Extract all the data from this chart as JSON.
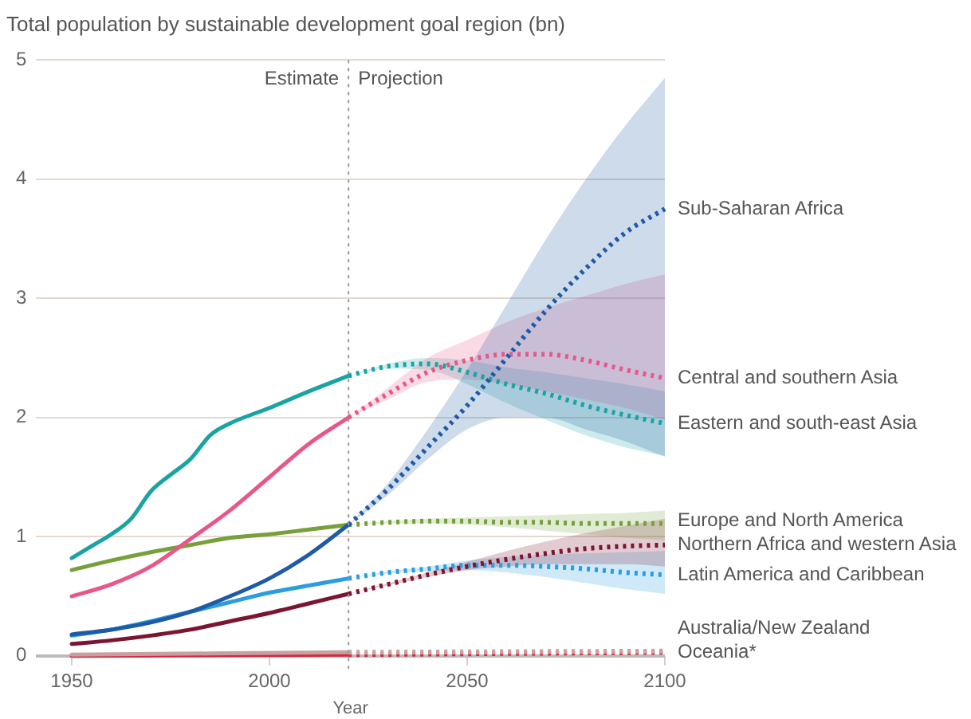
{
  "chart_data": {
    "type": "line",
    "title": "Total population by sustainable development goal region (bn)",
    "xlabel": "Year",
    "xlim": [
      1941,
      2100
    ],
    "xticks": [
      1950,
      2000,
      2050,
      2100
    ],
    "ylim": [
      0,
      5
    ],
    "yticks": [
      0,
      1,
      2,
      3,
      4,
      5
    ],
    "grid": "y",
    "legend": false,
    "annotations": [
      "Estimate",
      "Projection"
    ],
    "ref_lines": [
      {
        "axis": "x",
        "value": 2020,
        "color": "#999999",
        "line_style": "dotted"
      }
    ],
    "series": [
      {
        "color": "#1f5aa6",
        "line_style": "solid",
        "x": [
          1950,
          1960,
          1970,
          1980,
          1990,
          2000,
          2010,
          2020
        ],
        "values": [
          0.18,
          0.22,
          0.28,
          0.37,
          0.5,
          0.65,
          0.85,
          1.1
        ]
      },
      {
        "name": "Sub-Saharan Africa",
        "color": "#1f5aa6",
        "line_style": "dotted",
        "x": [
          2020,
          2030,
          2040,
          2050,
          2060,
          2070,
          2080,
          2090,
          2100
        ],
        "values": [
          1.1,
          1.4,
          1.75,
          2.1,
          2.5,
          2.9,
          3.25,
          3.55,
          3.75
        ],
        "lower": [
          1.1,
          1.35,
          1.65,
          1.9,
          2.0,
          2.0,
          1.9,
          1.8,
          1.67
        ],
        "upper": [
          1.1,
          1.45,
          1.9,
          2.4,
          2.95,
          3.5,
          4.0,
          4.45,
          4.85
        ]
      },
      {
        "color": "#e8578a",
        "line_style": "solid",
        "x": [
          1950,
          1960,
          1970,
          1980,
          1990,
          2000,
          2010,
          2020
        ],
        "values": [
          0.5,
          0.6,
          0.75,
          0.98,
          1.22,
          1.5,
          1.78,
          2.0
        ]
      },
      {
        "name": "Central and southern Asia",
        "color": "#e8578a",
        "line_style": "dotted",
        "x": [
          2020,
          2030,
          2040,
          2050,
          2060,
          2070,
          2080,
          2090,
          2100
        ],
        "values": [
          2.0,
          2.2,
          2.38,
          2.48,
          2.53,
          2.53,
          2.48,
          2.4,
          2.33
        ],
        "lower": [
          2.0,
          2.15,
          2.3,
          2.32,
          2.28,
          2.22,
          2.15,
          2.08,
          1.98
        ],
        "upper": [
          2.0,
          2.25,
          2.5,
          2.65,
          2.8,
          2.92,
          3.02,
          3.12,
          3.2
        ]
      },
      {
        "color": "#1aa3a3",
        "line_style": "solid",
        "x": [
          1950,
          1955,
          1960,
          1965,
          1970,
          1975,
          1980,
          1985,
          1990,
          2000,
          2010,
          2020
        ],
        "values": [
          0.82,
          0.92,
          1.02,
          1.15,
          1.38,
          1.52,
          1.65,
          1.85,
          1.95,
          2.08,
          2.22,
          2.35
        ]
      },
      {
        "name": "Eastern and south-east Asia",
        "color": "#1aa3a3",
        "line_style": "dotted",
        "x": [
          2020,
          2030,
          2040,
          2050,
          2060,
          2070,
          2080,
          2090,
          2100
        ],
        "values": [
          2.35,
          2.43,
          2.45,
          2.38,
          2.28,
          2.2,
          2.1,
          2.02,
          1.95
        ],
        "lower": [
          2.35,
          2.41,
          2.4,
          2.28,
          2.12,
          1.98,
          1.85,
          1.75,
          1.68
        ],
        "upper": [
          2.35,
          2.45,
          2.5,
          2.48,
          2.42,
          2.38,
          2.33,
          2.28,
          2.22
        ]
      },
      {
        "color": "#77a03a",
        "line_style": "solid",
        "x": [
          1950,
          1960,
          1970,
          1980,
          1990,
          2000,
          2010,
          2020
        ],
        "values": [
          0.72,
          0.8,
          0.87,
          0.93,
          0.99,
          1.02,
          1.06,
          1.1
        ]
      },
      {
        "name": "Europe and North America",
        "color": "#77a03a",
        "line_style": "dotted",
        "x": [
          2020,
          2030,
          2040,
          2050,
          2060,
          2070,
          2080,
          2090,
          2100
        ],
        "values": [
          1.1,
          1.12,
          1.13,
          1.13,
          1.12,
          1.12,
          1.11,
          1.11,
          1.11
        ],
        "lower": [
          1.1,
          1.11,
          1.11,
          1.1,
          1.08,
          1.05,
          1.02,
          0.99,
          0.97
        ],
        "upper": [
          1.1,
          1.13,
          1.15,
          1.16,
          1.17,
          1.18,
          1.19,
          1.2,
          1.22
        ]
      },
      {
        "color": "#7b1530",
        "line_style": "solid",
        "x": [
          1950,
          1960,
          1970,
          1980,
          1990,
          2000,
          2010,
          2020
        ],
        "values": [
          0.1,
          0.13,
          0.17,
          0.22,
          0.29,
          0.36,
          0.44,
          0.52
        ]
      },
      {
        "name": "Northern Africa and western Asia",
        "color": "#7b1530",
        "line_style": "dotted",
        "x": [
          2020,
          2030,
          2040,
          2050,
          2060,
          2070,
          2080,
          2090,
          2100
        ],
        "values": [
          0.52,
          0.6,
          0.68,
          0.75,
          0.81,
          0.86,
          0.9,
          0.92,
          0.93
        ],
        "lower": [
          0.52,
          0.59,
          0.66,
          0.72,
          0.75,
          0.77,
          0.77,
          0.77,
          0.75
        ],
        "upper": [
          0.52,
          0.61,
          0.7,
          0.79,
          0.88,
          0.96,
          1.03,
          1.09,
          1.15
        ]
      },
      {
        "color": "#2a9de0",
        "line_style": "solid",
        "x": [
          1950,
          1960,
          1970,
          1980,
          1990,
          2000,
          2010,
          2020
        ],
        "values": [
          0.17,
          0.22,
          0.29,
          0.37,
          0.45,
          0.53,
          0.59,
          0.65
        ]
      },
      {
        "name": "Latin America and Caribbean",
        "color": "#2a9de0",
        "line_style": "dotted",
        "x": [
          2020,
          2030,
          2040,
          2050,
          2060,
          2070,
          2080,
          2090,
          2100
        ],
        "values": [
          0.65,
          0.7,
          0.73,
          0.76,
          0.76,
          0.75,
          0.73,
          0.7,
          0.68
        ],
        "lower": [
          0.65,
          0.69,
          0.71,
          0.72,
          0.7,
          0.66,
          0.61,
          0.56,
          0.52
        ],
        "upper": [
          0.65,
          0.71,
          0.75,
          0.8,
          0.83,
          0.85,
          0.86,
          0.87,
          0.88
        ]
      },
      {
        "color": "#c9a0a0",
        "line_style": "solid",
        "x": [
          1950,
          2020
        ],
        "values": [
          0.01,
          0.03
        ]
      },
      {
        "name": "Australia/New Zealand",
        "color": "#c9a0a0",
        "line_style": "dotted",
        "x": [
          2020,
          2100
        ],
        "values": [
          0.03,
          0.04
        ]
      },
      {
        "color": "#d7263d",
        "line_style": "solid",
        "x": [
          1950,
          2020
        ],
        "values": [
          0.0,
          0.01
        ]
      },
      {
        "name": "Oceania*",
        "color": "#d7263d",
        "line_style": "dotted",
        "x": [
          2020,
          2100
        ],
        "values": [
          0.01,
          0.03
        ]
      }
    ]
  }
}
